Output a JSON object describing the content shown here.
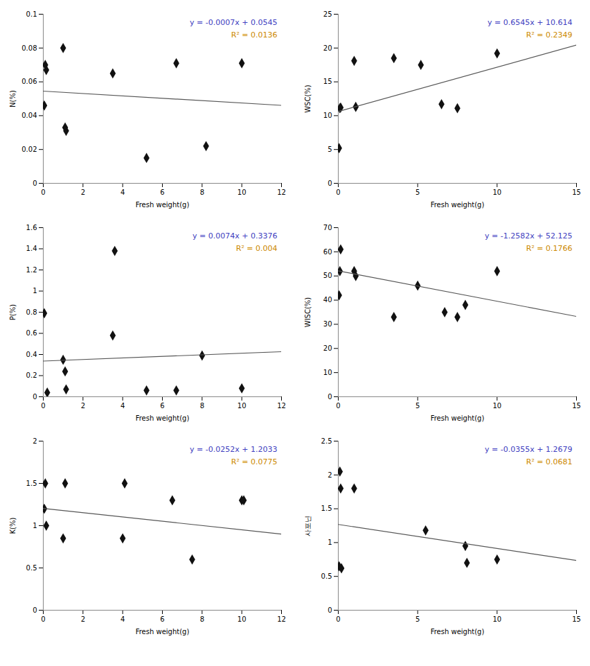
{
  "chart_data": [
    {
      "type": "scatter",
      "xlabel": "Fresh weight(g)",
      "ylabel": "N(%)",
      "grid": false,
      "xlim": [
        0,
        12
      ],
      "ylim": [
        0,
        0.1
      ],
      "xticks": [
        0,
        2,
        4,
        6,
        8,
        10,
        12
      ],
      "yticks": [
        0,
        0.02,
        0.04,
        0.06,
        0.08,
        0.1
      ],
      "series": [
        {
          "type": "scatter",
          "marker": "diamond",
          "color": "#111111",
          "x": [
            0.05,
            0.1,
            0.15,
            1.0,
            1.1,
            1.15,
            3.5,
            5.2,
            6.7,
            8.2,
            10.0
          ],
          "values": [
            0.046,
            0.07,
            0.067,
            0.08,
            0.033,
            0.031,
            0.065,
            0.015,
            0.071,
            0.022,
            0.071
          ]
        },
        {
          "type": "line",
          "line_style": "solid",
          "color": "#555555",
          "x": [
            0,
            12
          ],
          "values": [
            0.0545,
            0.0461
          ]
        }
      ],
      "annotations": [
        {
          "text": "y = -0.0007x + 0.0545",
          "color": "#4040C0"
        },
        {
          "text": "R² = 0.0136",
          "color": "#CC8800"
        }
      ]
    },
    {
      "type": "scatter",
      "xlabel": "Fresh weight(g)",
      "ylabel": "WSC(%)",
      "grid": false,
      "xlim": [
        0,
        15
      ],
      "ylim": [
        0,
        25
      ],
      "xticks": [
        0,
        5,
        10,
        15
      ],
      "yticks": [
        0,
        5,
        10,
        15,
        20,
        25
      ],
      "series": [
        {
          "type": "scatter",
          "marker": "diamond",
          "color": "#111111",
          "x": [
            0.05,
            0.1,
            0.15,
            1.0,
            1.1,
            3.5,
            5.2,
            6.5,
            7.5,
            10.0
          ],
          "values": [
            5.2,
            11.1,
            11.2,
            18.1,
            11.3,
            18.5,
            17.5,
            11.7,
            11.1,
            19.2
          ]
        },
        {
          "type": "line",
          "line_style": "solid",
          "color": "#555555",
          "x": [
            0,
            15
          ],
          "values": [
            10.614,
            20.4315
          ]
        }
      ],
      "annotations": [
        {
          "text": "y = 0.6545x + 10.614",
          "color": "#4040C0"
        },
        {
          "text": "R² = 0.2349",
          "color": "#CC8800"
        }
      ]
    },
    {
      "type": "scatter",
      "xlabel": "Fresh weight(g)",
      "ylabel": "P(%)",
      "grid": false,
      "xlim": [
        0,
        12
      ],
      "ylim": [
        0,
        1.6
      ],
      "xticks": [
        0,
        2,
        4,
        6,
        8,
        10,
        12
      ],
      "yticks": [
        0,
        0.2,
        0.4,
        0.6,
        0.8,
        1,
        1.2,
        1.4,
        1.6
      ],
      "series": [
        {
          "type": "scatter",
          "marker": "diamond",
          "color": "#111111",
          "x": [
            0.05,
            0.2,
            1.0,
            1.1,
            1.15,
            3.5,
            3.6,
            5.2,
            6.7,
            8.0,
            10.0
          ],
          "values": [
            0.79,
            0.04,
            0.35,
            0.24,
            0.07,
            0.58,
            1.38,
            0.06,
            0.06,
            0.39,
            0.08
          ]
        },
        {
          "type": "line",
          "line_style": "solid",
          "color": "#555555",
          "x": [
            0,
            12
          ],
          "values": [
            0.3376,
            0.4264
          ]
        }
      ],
      "annotations": [
        {
          "text": "y = 0.0074x + 0.3376",
          "color": "#4040C0"
        },
        {
          "text": "R² = 0.004",
          "color": "#CC8800"
        }
      ]
    },
    {
      "type": "scatter",
      "xlabel": "Fresh weight(g)",
      "ylabel": "WISC(%)",
      "grid": false,
      "xlim": [
        0,
        15
      ],
      "ylim": [
        0,
        70
      ],
      "xticks": [
        0,
        5,
        10,
        15
      ],
      "yticks": [
        0,
        10,
        20,
        30,
        40,
        50,
        60,
        70
      ],
      "series": [
        {
          "type": "scatter",
          "marker": "diamond",
          "color": "#111111",
          "x": [
            0.05,
            0.1,
            0.15,
            1.0,
            1.1,
            3.5,
            5.0,
            6.7,
            7.5,
            8.0,
            10.0
          ],
          "values": [
            42.0,
            52.0,
            61.0,
            52.0,
            50.0,
            33.0,
            46.0,
            35.0,
            33.0,
            38.0,
            52.0
          ]
        },
        {
          "type": "line",
          "line_style": "solid",
          "color": "#555555",
          "x": [
            0,
            15
          ],
          "values": [
            52.125,
            33.252
          ]
        }
      ],
      "annotations": [
        {
          "text": "y = -1.2582x + 52.125",
          "color": "#4040C0"
        },
        {
          "text": "R² = 0.1766",
          "color": "#CC8800"
        }
      ]
    },
    {
      "type": "scatter",
      "xlabel": "Fresh weight(g)",
      "ylabel": "K(%)",
      "grid": false,
      "xlim": [
        0,
        12
      ],
      "ylim": [
        0,
        2
      ],
      "xticks": [
        0,
        2,
        4,
        6,
        8,
        10,
        12
      ],
      "yticks": [
        0,
        0.5,
        1,
        1.5,
        2
      ],
      "series": [
        {
          "type": "scatter",
          "marker": "diamond",
          "color": "#111111",
          "x": [
            0.05,
            0.1,
            0.15,
            1.0,
            1.1,
            4.0,
            4.1,
            6.5,
            7.5,
            10.0,
            10.1
          ],
          "values": [
            1.2,
            1.5,
            1.0,
            0.85,
            1.5,
            0.85,
            1.5,
            1.3,
            0.6,
            1.3,
            1.3
          ]
        },
        {
          "type": "line",
          "line_style": "solid",
          "color": "#555555",
          "x": [
            0,
            12
          ],
          "values": [
            1.2033,
            0.9009
          ]
        }
      ],
      "annotations": [
        {
          "text": "y = -0.0252x + 1.2033",
          "color": "#4040C0"
        },
        {
          "text": "R² = 0.0775",
          "color": "#CC8800"
        }
      ]
    },
    {
      "type": "scatter",
      "xlabel": "Fresh weight(g)",
      "ylabel": "사포닌",
      "grid": false,
      "xlim": [
        0,
        15
      ],
      "ylim": [
        0,
        2.5
      ],
      "xticks": [
        0,
        5,
        10,
        15
      ],
      "yticks": [
        0,
        0.5,
        1,
        1.5,
        2,
        2.5
      ],
      "series": [
        {
          "type": "scatter",
          "marker": "diamond",
          "color": "#111111",
          "x": [
            0.05,
            0.1,
            0.15,
            0.2,
            1.0,
            5.5,
            8.0,
            8.1,
            10.0
          ],
          "values": [
            0.65,
            2.05,
            1.8,
            0.62,
            1.8,
            1.18,
            0.95,
            0.7,
            0.75
          ]
        },
        {
          "type": "line",
          "line_style": "solid",
          "color": "#555555",
          "x": [
            0,
            15
          ],
          "values": [
            1.2679,
            0.7354
          ]
        }
      ],
      "annotations": [
        {
          "text": "y = -0.0355x + 1.2679",
          "color": "#4040C0"
        },
        {
          "text": "R² = 0.0681",
          "color": "#CC8800"
        }
      ]
    }
  ]
}
